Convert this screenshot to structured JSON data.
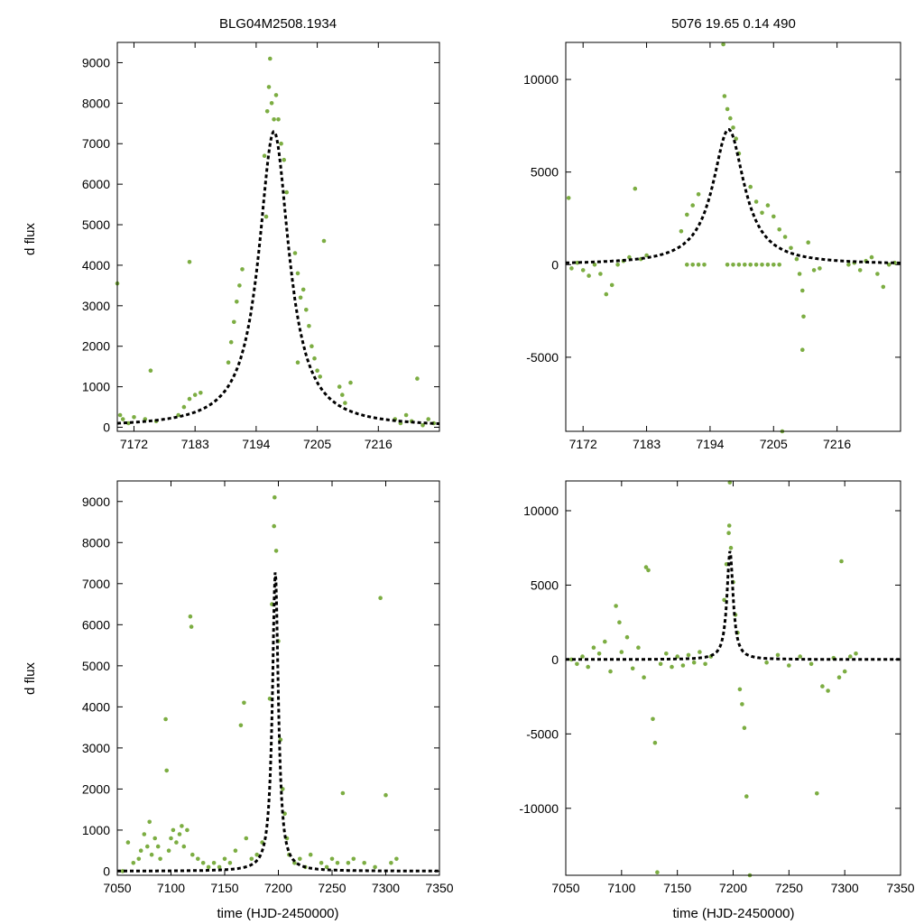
{
  "chart_data": [
    {
      "type": "scatter",
      "panel": "top-left",
      "title": "BLG04M2508.1934",
      "xlabel": "",
      "ylabel": "d flux",
      "xlim": [
        7169,
        7227
      ],
      "ylim": [
        -100,
        9500
      ],
      "xticks": [
        7172,
        7183,
        7194,
        7205,
        7216
      ],
      "yticks": [
        0,
        1000,
        2000,
        3000,
        4000,
        5000,
        6000,
        7000,
        8000,
        9000
      ],
      "model": {
        "type": "lens-fit",
        "t0": 7197.2,
        "peak": 7300,
        "tE": 3.3
      },
      "point_color": "#7cad42",
      "model_color": "#000000",
      "series": [
        {
          "name": "data",
          "points": [
            [
              7169,
              3550
            ],
            [
              7169.5,
              300
            ],
            [
              7170,
              200
            ],
            [
              7171,
              100
            ],
            [
              7172,
              250
            ],
            [
              7174,
              200
            ],
            [
              7175,
              1400
            ],
            [
              7176,
              150
            ],
            [
              7180,
              300
            ],
            [
              7181,
              500
            ],
            [
              7182,
              700
            ],
            [
              7183,
              800
            ],
            [
              7184,
              850
            ],
            [
              7182,
              4080
            ],
            [
              7189,
              1600
            ],
            [
              7189.5,
              2100
            ],
            [
              7190,
              2600
            ],
            [
              7190.5,
              3100
            ],
            [
              7191,
              3500
            ],
            [
              7191.5,
              3900
            ],
            [
              7195.5,
              6700
            ],
            [
              7196,
              7800
            ],
            [
              7196.3,
              8400
            ],
            [
              7196.5,
              9100
            ],
            [
              7196.8,
              8000
            ],
            [
              7197.2,
              7600
            ],
            [
              7197.6,
              8200
            ],
            [
              7198,
              7600
            ],
            [
              7198.5,
              7000
            ],
            [
              7199,
              6600
            ],
            [
              7199.5,
              5800
            ],
            [
              7195.8,
              5200
            ],
            [
              7201,
              4300
            ],
            [
              7201.5,
              3800
            ],
            [
              7202,
              3200
            ],
            [
              7202.5,
              3400
            ],
            [
              7203,
              2900
            ],
            [
              7203.5,
              2500
            ],
            [
              7204,
              2000
            ],
            [
              7204.5,
              1700
            ],
            [
              7205,
              1400
            ],
            [
              7205.5,
              1250
            ],
            [
              7201.5,
              1600
            ],
            [
              7206.2,
              4600
            ],
            [
              7209,
              1000
            ],
            [
              7209.5,
              800
            ],
            [
              7210,
              600
            ],
            [
              7211,
              1100
            ],
            [
              7219,
              200
            ],
            [
              7220,
              100
            ],
            [
              7221,
              300
            ],
            [
              7222,
              150
            ],
            [
              7223,
              1200
            ],
            [
              7224,
              50
            ],
            [
              7225,
              200
            ],
            [
              7226,
              100
            ]
          ]
        }
      ]
    },
    {
      "type": "scatter",
      "panel": "top-right",
      "title": "5076  19.65  0.14  490",
      "xlabel": "",
      "ylabel": "",
      "xlim": [
        7169,
        7227
      ],
      "ylim": [
        -9000,
        12000
      ],
      "xticks": [
        7172,
        7183,
        7194,
        7205,
        7216
      ],
      "yticks": [
        -5000,
        0,
        5000,
        10000
      ],
      "model": {
        "type": "lens-fit",
        "t0": 7197.2,
        "peak": 7300,
        "tE": 3.3
      },
      "point_color": "#7cad42",
      "model_color": "#000000",
      "series": [
        {
          "name": "data",
          "points": [
            [
              7169.5,
              3600
            ],
            [
              7170,
              -200
            ],
            [
              7171,
              100
            ],
            [
              7172,
              -300
            ],
            [
              7173,
              -600
            ],
            [
              7174,
              0
            ],
            [
              7175,
              -500
            ],
            [
              7176,
              -1600
            ],
            [
              7177,
              -1100
            ],
            [
              7178,
              0
            ],
            [
              7179,
              200
            ],
            [
              7180,
              400
            ],
            [
              7181,
              4100
            ],
            [
              7182,
              300
            ],
            [
              7183,
              500
            ],
            [
              7189,
              1800
            ],
            [
              7190,
              2700
            ],
            [
              7191,
              3200
            ],
            [
              7192,
              3800
            ],
            [
              7196.5,
              9100
            ],
            [
              7196.3,
              11900
            ],
            [
              7197,
              8400
            ],
            [
              7197.5,
              7900
            ],
            [
              7198,
              7400
            ],
            [
              7198.5,
              6800
            ],
            [
              7199,
              6000
            ],
            [
              7201,
              4200
            ],
            [
              7202,
              3400
            ],
            [
              7203,
              2800
            ],
            [
              7204,
              3200
            ],
            [
              7205,
              2600
            ],
            [
              7206,
              1900
            ],
            [
              7207,
              1500
            ],
            [
              7208,
              900
            ],
            [
              7209,
              300
            ],
            [
              7209.5,
              -500
            ],
            [
              7210,
              -1400
            ],
            [
              7210.2,
              -2800
            ],
            [
              7210,
              -4600
            ],
            [
              7211,
              1200
            ],
            [
              7212,
              -300
            ],
            [
              7213,
              -200
            ],
            [
              7218,
              0
            ],
            [
              7219,
              100
            ],
            [
              7220,
              -300
            ],
            [
              7221,
              200
            ],
            [
              7222,
              400
            ],
            [
              7223,
              -500
            ],
            [
              7224,
              -1200
            ],
            [
              7225,
              0
            ],
            [
              7226,
              100
            ],
            [
              7206.5,
              -9000
            ],
            [
              7190,
              0
            ],
            [
              7191,
              0
            ],
            [
              7192,
              0
            ],
            [
              7193,
              0
            ],
            [
              7197,
              0
            ],
            [
              7198,
              0
            ],
            [
              7199,
              0
            ],
            [
              7200,
              0
            ],
            [
              7201,
              0
            ],
            [
              7202,
              0
            ],
            [
              7203,
              0
            ],
            [
              7204,
              0
            ],
            [
              7205,
              0
            ],
            [
              7206,
              0
            ]
          ]
        }
      ]
    },
    {
      "type": "scatter",
      "panel": "bottom-left",
      "title": "",
      "xlabel": "time (HJD-2450000)",
      "ylabel": "d flux",
      "xlim": [
        7050,
        7350
      ],
      "ylim": [
        -100,
        9500
      ],
      "xticks": [
        7050,
        7100,
        7150,
        7200,
        7250,
        7300,
        7350
      ],
      "yticks": [
        0,
        1000,
        2000,
        3000,
        4000,
        5000,
        6000,
        7000,
        8000,
        9000
      ],
      "model": {
        "type": "lens-fit",
        "t0": 7197.2,
        "peak": 7300,
        "tE": 3.3
      },
      "point_color": "#7cad42",
      "model_color": "#000000",
      "series": [
        {
          "name": "data",
          "points": [
            [
              7055,
              0
            ],
            [
              7060,
              700
            ],
            [
              7065,
              200
            ],
            [
              7070,
              300
            ],
            [
              7072,
              500
            ],
            [
              7075,
              900
            ],
            [
              7078,
              600
            ],
            [
              7080,
              1200
            ],
            [
              7082,
              400
            ],
            [
              7085,
              800
            ],
            [
              7088,
              600
            ],
            [
              7090,
              300
            ],
            [
              7095,
              3700
            ],
            [
              7096,
              2450
            ],
            [
              7098,
              500
            ],
            [
              7100,
              800
            ],
            [
              7102,
              1000
            ],
            [
              7105,
              700
            ],
            [
              7108,
              900
            ],
            [
              7110,
              1100
            ],
            [
              7112,
              600
            ],
            [
              7115,
              1000
            ],
            [
              7118,
              6200
            ],
            [
              7119,
              5950
            ],
            [
              7120,
              400
            ],
            [
              7125,
              300
            ],
            [
              7130,
              200
            ],
            [
              7135,
              100
            ],
            [
              7140,
              200
            ],
            [
              7145,
              100
            ],
            [
              7150,
              300
            ],
            [
              7155,
              200
            ],
            [
              7160,
              500
            ],
            [
              7165,
              3550
            ],
            [
              7168,
              4100
            ],
            [
              7170,
              800
            ],
            [
              7175,
              300
            ],
            [
              7180,
              400
            ],
            [
              7185,
              700
            ],
            [
              7192,
              4200
            ],
            [
              7194,
              6500
            ],
            [
              7196,
              8400
            ],
            [
              7196.5,
              9100
            ],
            [
              7198,
              7800
            ],
            [
              7200,
              5600
            ],
            [
              7202,
              3200
            ],
            [
              7204,
              2000
            ],
            [
              7206,
              1400
            ],
            [
              7208,
              800
            ],
            [
              7210,
              400
            ],
            [
              7215,
              200
            ],
            [
              7220,
              300
            ],
            [
              7225,
              100
            ],
            [
              7230,
              400
            ],
            [
              7240,
              200
            ],
            [
              7245,
              100
            ],
            [
              7250,
              300
            ],
            [
              7255,
              200
            ],
            [
              7260,
              1900
            ],
            [
              7265,
              200
            ],
            [
              7270,
              300
            ],
            [
              7280,
              200
            ],
            [
              7290,
              100
            ],
            [
              7295,
              6650
            ],
            [
              7300,
              1850
            ],
            [
              7305,
              200
            ],
            [
              7310,
              300
            ]
          ]
        }
      ]
    },
    {
      "type": "scatter",
      "panel": "bottom-right",
      "title": "",
      "xlabel": "time (HJD-2450000)",
      "ylabel": "",
      "xlim": [
        7050,
        7350
      ],
      "ylim": [
        -14500,
        12000
      ],
      "xticks": [
        7050,
        7100,
        7150,
        7200,
        7250,
        7300,
        7350
      ],
      "yticks": [
        -10000,
        -5000,
        0,
        5000,
        10000
      ],
      "model": {
        "type": "lens-fit",
        "t0": 7197.2,
        "peak": 7300,
        "tE": 3.3
      },
      "point_color": "#7cad42",
      "model_color": "#000000",
      "series": [
        {
          "name": "data",
          "points": [
            [
              7055,
              0
            ],
            [
              7060,
              -300
            ],
            [
              7065,
              200
            ],
            [
              7070,
              -500
            ],
            [
              7075,
              800
            ],
            [
              7080,
              400
            ],
            [
              7085,
              1200
            ],
            [
              7090,
              -800
            ],
            [
              7095,
              3600
            ],
            [
              7098,
              2500
            ],
            [
              7100,
              500
            ],
            [
              7105,
              1500
            ],
            [
              7110,
              -600
            ],
            [
              7115,
              800
            ],
            [
              7120,
              -1200
            ],
            [
              7122,
              6200
            ],
            [
              7124,
              6000
            ],
            [
              7128,
              -4000
            ],
            [
              7130,
              -5600
            ],
            [
              7132,
              -14300
            ],
            [
              7135,
              -300
            ],
            [
              7140,
              400
            ],
            [
              7145,
              -500
            ],
            [
              7150,
              200
            ],
            [
              7155,
              -400
            ],
            [
              7160,
              300
            ],
            [
              7165,
              -200
            ],
            [
              7170,
              500
            ],
            [
              7175,
              -300
            ],
            [
              7180,
              200
            ],
            [
              7192,
              4000
            ],
            [
              7194,
              6400
            ],
            [
              7196,
              8500
            ],
            [
              7196.5,
              9000
            ],
            [
              7197,
              11900
            ],
            [
              7198,
              7500
            ],
            [
              7200,
              5200
            ],
            [
              7202,
              3000
            ],
            [
              7204,
              1800
            ],
            [
              7206,
              -2000
            ],
            [
              7208,
              -3000
            ],
            [
              7210,
              -4600
            ],
            [
              7212,
              -9200
            ],
            [
              7215,
              -14500
            ],
            [
              7230,
              -200
            ],
            [
              7240,
              300
            ],
            [
              7250,
              -400
            ],
            [
              7260,
              200
            ],
            [
              7270,
              -300
            ],
            [
              7275,
              -9000
            ],
            [
              7280,
              -1800
            ],
            [
              7285,
              -2100
            ],
            [
              7290,
              100
            ],
            [
              7295,
              -1200
            ],
            [
              7297,
              6600
            ],
            [
              7300,
              -800
            ],
            [
              7305,
              200
            ],
            [
              7310,
              400
            ]
          ]
        }
      ]
    }
  ]
}
